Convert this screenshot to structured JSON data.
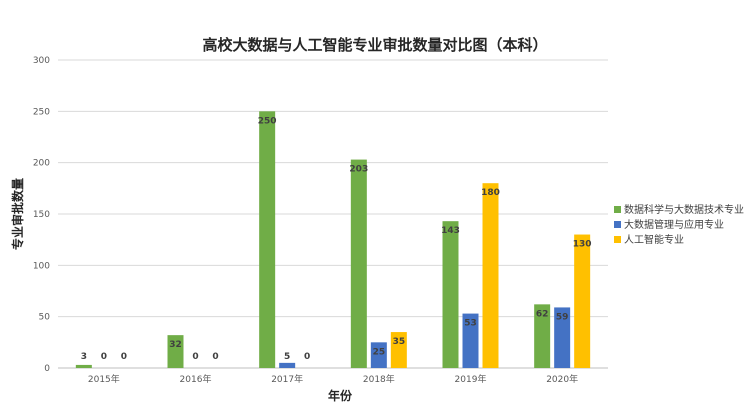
{
  "chart_data": {
    "type": "bar",
    "title": "高校大数据与人工智能专业审批数量对比图（本科）",
    "xlabel": "年份",
    "ylabel": "专业审批数量",
    "categories": [
      "2015年",
      "2016年",
      "2017年",
      "2018年",
      "2019年",
      "2020年"
    ],
    "ylim": [
      0,
      300
    ],
    "yticks": [
      0,
      50,
      100,
      150,
      200,
      250,
      300
    ],
    "grid": true,
    "legend_position": "right",
    "series": [
      {
        "name": "数据科学与大数据技术专业",
        "color": "#70ad47",
        "values": [
          3,
          32,
          250,
          203,
          143,
          62
        ]
      },
      {
        "name": "大数据管理与应用专业",
        "color": "#4472c4",
        "values": [
          0,
          0,
          5,
          25,
          53,
          59
        ]
      },
      {
        "name": "人工智能专业",
        "color": "#ffc000",
        "values": [
          0,
          0,
          0,
          35,
          180,
          130
        ]
      }
    ]
  }
}
